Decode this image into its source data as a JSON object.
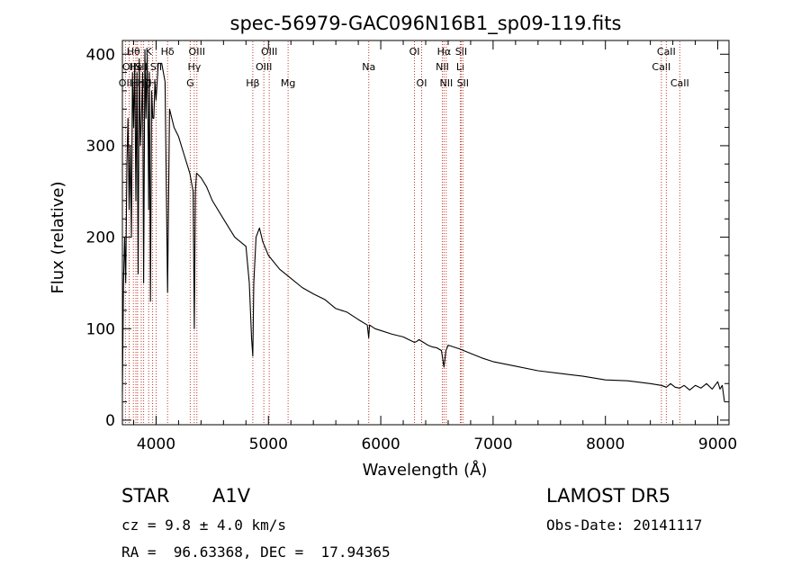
{
  "chart_data": {
    "type": "line",
    "title": "spec-56979-GAC096N16B1_sp09-119.fits",
    "xlabel": "Wavelength (Å)",
    "ylabel": "Flux (relative)",
    "xlim": [
      3700,
      9100
    ],
    "ylim": [
      -5,
      415
    ],
    "xticks": [
      4000,
      5000,
      6000,
      7000,
      8000,
      9000
    ],
    "xtick_labels": [
      "4000",
      "5000",
      "6000",
      "7000",
      "8000",
      "9000"
    ],
    "yticks": [
      0,
      100,
      200,
      300,
      400
    ],
    "ytick_labels": [
      "0",
      "100",
      "200",
      "300",
      "400"
    ],
    "grid": false,
    "legend": "none",
    "series": [
      {
        "x": [
          3700,
          3710,
          3720,
          3730,
          3740,
          3750,
          3760,
          3770,
          3780,
          3790,
          3800,
          3810,
          3820,
          3830,
          3835,
          3840,
          3850,
          3860,
          3870,
          3880,
          3889,
          3900,
          3910,
          3920,
          3930,
          3934,
          3940,
          3950,
          3960,
          3970,
          3980,
          3990,
          4000,
          4020,
          4050,
          4080,
          4102,
          4120,
          4140,
          4160,
          4200,
          4250,
          4300,
          4330,
          4340,
          4350,
          4360,
          4400,
          4450,
          4500,
          4600,
          4700,
          4800,
          4830,
          4850,
          4861,
          4870,
          4890,
          4920,
          4950,
          5000,
          5100,
          5200,
          5300,
          5400,
          5500,
          5600,
          5700,
          5800,
          5880,
          5893,
          5900,
          5950,
          6000,
          6100,
          6200,
          6300,
          6320,
          6340,
          6380,
          6420,
          6460,
          6500,
          6540,
          6563,
          6580,
          6600,
          6650,
          6700,
          6800,
          6900,
          7000,
          7200,
          7400,
          7600,
          7800,
          8000,
          8200,
          8400,
          8498,
          8542,
          8580,
          8620,
          8662,
          8700,
          8750,
          8800,
          8850,
          8900,
          8950,
          9000,
          9020,
          9040,
          9060
        ],
        "y": [
          30,
          150,
          200,
          150,
          280,
          330,
          230,
          300,
          200,
          380,
          320,
          390,
          240,
          380,
          290,
          160,
          395,
          300,
          330,
          380,
          150,
          405,
          330,
          400,
          300,
          230,
          380,
          130,
          360,
          330,
          330,
          370,
          350,
          390,
          390,
          370,
          140,
          340,
          330,
          320,
          310,
          290,
          270,
          250,
          100,
          250,
          270,
          265,
          255,
          240,
          220,
          200,
          190,
          150,
          90,
          70,
          150,
          200,
          210,
          195,
          180,
          165,
          155,
          145,
          138,
          132,
          122,
          118,
          110,
          104,
          90,
          104,
          100,
          98,
          94,
          91,
          85,
          86,
          88,
          85,
          82,
          80,
          79,
          76,
          58,
          76,
          82,
          80,
          78,
          73,
          68,
          64,
          59,
          54,
          51,
          48,
          44,
          43,
          40,
          38,
          36,
          40,
          36,
          35,
          38,
          33,
          38,
          35,
          40,
          34,
          42,
          34,
          38,
          20
        ]
      }
    ],
    "line_markers": [
      {
        "lambda": 3727,
        "label": "OII",
        "row": 2
      },
      {
        "lambda": 3760,
        "label": "OII",
        "row": 1
      },
      {
        "lambda": 3798,
        "label": "Hθ",
        "row": 0
      },
      {
        "lambda": 3820,
        "label": "He",
        "row": 1
      },
      {
        "lambda": 3835,
        "label": "Hη",
        "row": 2
      },
      {
        "lambda": 3868,
        "label": "SII",
        "row": 1
      },
      {
        "lambda": 3889,
        "label": "Hζ",
        "row": 2
      },
      {
        "lambda": 3934,
        "label": "K",
        "row": 0
      },
      {
        "lambda": 3969,
        "label": "H",
        "row": 2
      },
      {
        "lambda": 4000,
        "label": "SII",
        "row": 1
      },
      {
        "lambda": 4102,
        "label": "Hδ",
        "row": 0
      },
      {
        "lambda": 4304,
        "label": "G",
        "row": 2
      },
      {
        "lambda": 4340,
        "label": "Hγ",
        "row": 1
      },
      {
        "lambda": 4363,
        "label": "OIII",
        "row": 0
      },
      {
        "lambda": 4861,
        "label": "Hβ",
        "row": 2
      },
      {
        "lambda": 4959,
        "label": "OIII",
        "row": 1
      },
      {
        "lambda": 5007,
        "label": "OIII",
        "row": 0
      },
      {
        "lambda": 5175,
        "label": "Mg",
        "row": 2
      },
      {
        "lambda": 5893,
        "label": "Na",
        "row": 1
      },
      {
        "lambda": 6300,
        "label": "OI",
        "row": 0
      },
      {
        "lambda": 6364,
        "label": "OI",
        "row": 2
      },
      {
        "lambda": 6548,
        "label": "NII",
        "row": 1
      },
      {
        "lambda": 6563,
        "label": "Hα",
        "row": 0
      },
      {
        "lambda": 6583,
        "label": "NII",
        "row": 2
      },
      {
        "lambda": 6708,
        "label": "Li",
        "row": 1
      },
      {
        "lambda": 6716,
        "label": "SII",
        "row": 0
      },
      {
        "lambda": 6731,
        "label": "SII",
        "row": 2
      },
      {
        "lambda": 8498,
        "label": "CaII",
        "row": 1
      },
      {
        "lambda": 8542,
        "label": "CaII",
        "row": 0
      },
      {
        "lambda": 8662,
        "label": "CaII",
        "row": 2
      }
    ],
    "line_marker_color": "#c0392b"
  },
  "info": {
    "object_class": "STAR",
    "subclass": "A1V",
    "redshift": "cz = 9.8 ± 4.0 km/s",
    "coords": "RA =  96.63368, DEC =  17.94365",
    "survey": "LAMOST DR5",
    "obs_date": "Obs-Date: 20141117"
  }
}
